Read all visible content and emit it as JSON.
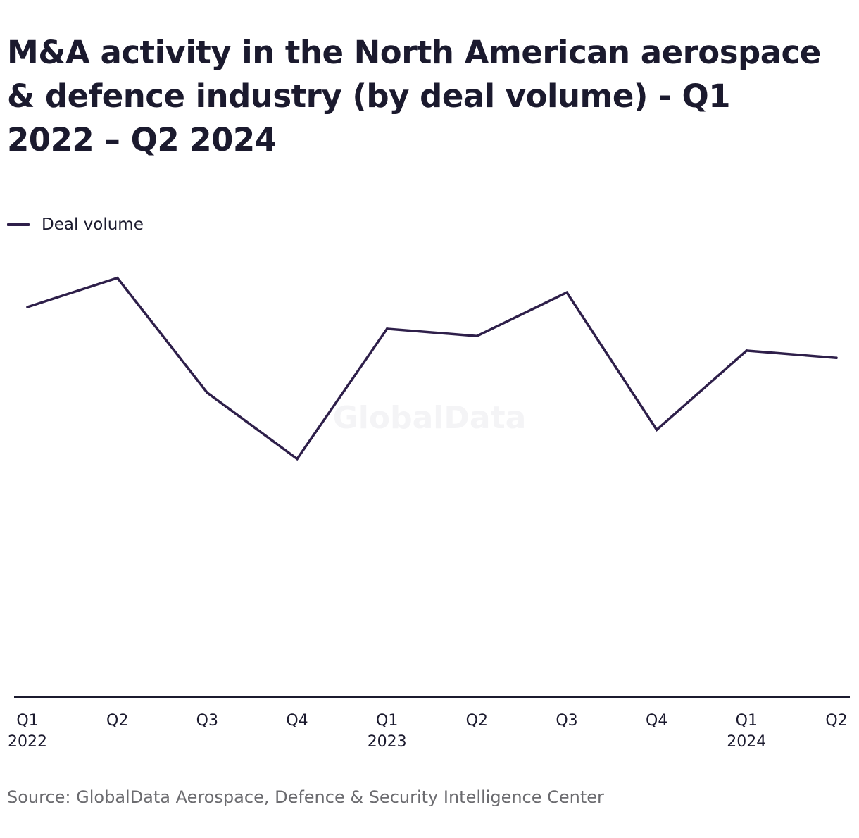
{
  "title": "M&A activity in the North American aerospace & defence industry (by deal volume) - Q1 2022 – Q2 2024",
  "watermark": "GlobalData",
  "source": "Source: GlobalData Aerospace, Defence & Security Intelligence Center",
  "colors": {
    "line": "#2e1f4a",
    "axis": "#1b1a2e",
    "text": "#1b1a2e",
    "source_text": "#6b6b6f"
  },
  "chart_data": {
    "type": "line",
    "title": "M&A activity in the North American aerospace & defence industry (by deal volume) - Q1 2022 – Q2 2024",
    "xlabel": "",
    "ylabel": "",
    "categories": [
      "Q1 2022",
      "Q2 2022",
      "Q3 2022",
      "Q4 2022",
      "Q1 2023",
      "Q2 2023",
      "Q3 2023",
      "Q4 2023",
      "Q1 2024",
      "Q2 2024"
    ],
    "tick_labels": [
      [
        "Q1",
        "2022"
      ],
      [
        "Q2",
        ""
      ],
      [
        "Q3",
        ""
      ],
      [
        "Q4",
        ""
      ],
      [
        "Q1",
        "2023"
      ],
      [
        "Q2",
        ""
      ],
      [
        "Q3",
        ""
      ],
      [
        "Q4",
        ""
      ],
      [
        "Q1",
        "2024"
      ],
      [
        "Q2",
        ""
      ]
    ],
    "series": [
      {
        "name": "Deal volume",
        "values": [
          53.7,
          57.7,
          41.9,
          32.8,
          50.7,
          49.7,
          55.7,
          36.8,
          47.7,
          46.7
        ]
      }
    ],
    "ylim": [
      0,
      63
    ],
    "grid": false,
    "legend": "top-left",
    "y_axis_visible": false
  }
}
